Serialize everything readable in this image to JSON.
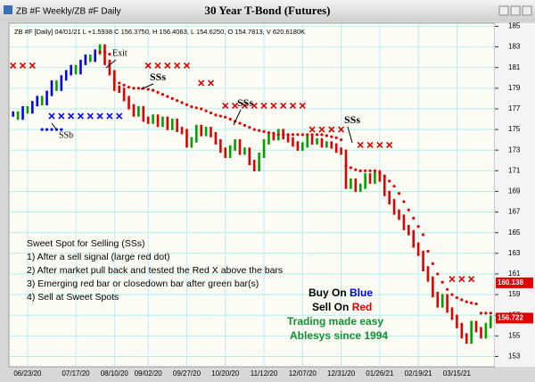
{
  "header": {
    "window_title": "ZB #F Weekly/ZB #F Daily",
    "chart_title": "30 Year T-Bond (Futures)"
  },
  "chart_data": {
    "type": "bar",
    "info": "ZB #F [Daily] 04/01/21 L +1.5938 C 156.3750, H 156.4063, L 154.6250, O 154.7813, V 620.6180K",
    "categories": [
      null,
      null,
      null,
      "06/23/20",
      null,
      null,
      null,
      null,
      null,
      null,
      null,
      null,
      null,
      "07/17/20",
      null,
      null,
      null,
      null,
      null,
      null,
      null,
      "08/10/20",
      null,
      null,
      null,
      null,
      null,
      null,
      "09/02/20",
      null,
      null,
      null,
      null,
      null,
      null,
      null,
      "09/27/20",
      null,
      null,
      null,
      null,
      null,
      null,
      null,
      "10/20/20",
      null,
      null,
      null,
      null,
      null,
      null,
      null,
      "11/12/20",
      null,
      null,
      null,
      null,
      null,
      null,
      null,
      "12/07/20",
      null,
      null,
      null,
      null,
      null,
      null,
      null,
      "12/31/20",
      null,
      null,
      null,
      null,
      null,
      null,
      null,
      "01/26/21",
      null,
      null,
      null,
      null,
      null,
      null,
      null,
      "02/19/21",
      null,
      null,
      null,
      null,
      null,
      null,
      null,
      "03/15/21",
      null,
      null,
      null,
      null,
      null,
      null,
      null
    ],
    "price": {
      "up_color": "#00a000",
      "down_color": "#e00000",
      "buy_color": "#0000ff",
      "values": [
        176.5,
        176.2,
        177.0,
        176.8,
        177.5,
        178.0,
        177.6,
        178.5,
        179.5,
        179.0,
        180.0,
        180.5,
        181.0,
        180.6,
        181.5,
        182.0,
        181.8,
        182.5,
        183.0,
        181.5,
        180.5,
        179.0,
        178.8,
        178.0,
        177.2,
        176.5,
        177.0,
        176.0,
        175.8,
        176.2,
        175.5,
        176.0,
        175.2,
        175.8,
        175.0,
        174.8,
        173.5,
        174.0,
        175.2,
        174.6,
        175.0,
        174.5,
        173.8,
        173.0,
        172.5,
        173.2,
        173.8,
        172.8,
        173.0,
        171.8,
        171.2,
        172.5,
        173.8,
        174.5,
        174.2,
        174.8,
        174.3,
        174.0,
        173.6,
        173.2,
        173.5,
        174.2,
        173.8,
        173.9,
        173.5,
        173.6,
        173.4,
        173.0,
        172.8,
        169.5,
        170.0,
        169.2,
        169.5,
        170.5,
        170.0,
        170.8,
        170.2,
        168.8,
        168.0,
        167.0,
        166.5,
        165.5,
        165.0,
        163.8,
        163.0,
        161.5,
        160.5,
        159.0,
        158.0,
        158.8,
        157.5,
        156.8,
        156.0,
        155.0,
        154.5,
        156.2,
        155.6,
        155.0,
        156.0,
        156.7
      ]
    },
    "markers": [
      {
        "shape": "dot",
        "color": "#e00000",
        "values": [
          null,
          null,
          null,
          null,
          null,
          null,
          null,
          null,
          null,
          null,
          null,
          null,
          null,
          null,
          null,
          null,
          null,
          null,
          182.5,
          182.5,
          182.3,
          179.8,
          179.5,
          179.3,
          179.1,
          179.0,
          179.0,
          179.0,
          178.9,
          178.8,
          178.6,
          178.4,
          178.2,
          178.0,
          177.8,
          177.6,
          177.4,
          177.2,
          177.1,
          177.0,
          176.8,
          176.6,
          176.4,
          176.3,
          176.2,
          176.0,
          175.8,
          175.6,
          175.4,
          175.2,
          175.0,
          174.9,
          174.8,
          174.7,
          174.6,
          174.5,
          174.5,
          174.5,
          174.5,
          174.5,
          174.5,
          174.5,
          174.5,
          174.5,
          174.5,
          174.4,
          174.3,
          174.2,
          174.0,
          171.5,
          171.3,
          171.1,
          171.0,
          171.0,
          171.0,
          171.0,
          170.8,
          170.5,
          170.0,
          169.5,
          168.8,
          168.0,
          167.2,
          166.4,
          165.6,
          164.8,
          163.2,
          162.0,
          161.0,
          160.2,
          159.5,
          159.0,
          158.7,
          158.5,
          158.3,
          158.2,
          158.1,
          157.2,
          157.2,
          157.2
        ]
      },
      {
        "shape": "x",
        "color": "#e00000",
        "values": [
          181.2,
          null,
          181.2,
          null,
          181.2,
          null,
          null,
          null,
          null,
          null,
          null,
          null,
          null,
          null,
          null,
          null,
          null,
          null,
          null,
          null,
          null,
          null,
          null,
          null,
          null,
          null,
          null,
          null,
          181.2,
          null,
          181.2,
          null,
          181.2,
          null,
          181.2,
          null,
          181.2,
          null,
          null,
          179.5,
          null,
          179.5,
          null,
          null,
          177.3,
          null,
          177.3,
          null,
          177.3,
          null,
          177.3,
          null,
          177.3,
          null,
          177.3,
          null,
          177.3,
          null,
          177.3,
          null,
          177.3,
          null,
          175.0,
          null,
          175.0,
          null,
          175.0,
          null,
          175.0,
          null,
          null,
          null,
          173.5,
          null,
          173.5,
          null,
          173.5,
          null,
          173.5,
          null,
          null,
          null,
          null,
          null,
          null,
          null,
          null,
          null,
          null,
          null,
          null,
          160.5,
          null,
          160.5,
          null,
          160.5,
          null,
          null,
          null,
          null
        ]
      },
      {
        "shape": "x",
        "color": "#0000ff",
        "values": [
          null,
          null,
          null,
          null,
          null,
          null,
          null,
          null,
          176.3,
          null,
          176.3,
          null,
          176.3,
          null,
          176.3,
          null,
          176.3,
          null,
          176.3,
          null,
          176.3,
          null,
          176.3,
          null,
          null,
          null,
          null,
          null,
          null,
          null,
          null,
          null,
          null,
          null,
          null,
          null,
          null,
          null,
          null,
          null,
          null,
          null,
          null,
          null,
          null,
          null,
          null,
          null,
          null,
          null,
          null,
          null,
          null,
          null,
          null,
          null,
          null,
          null,
          null,
          null,
          null,
          null,
          null,
          null,
          null,
          null,
          null,
          null,
          null,
          null,
          null,
          null,
          null,
          null,
          null,
          null,
          null,
          null,
          null,
          null,
          null,
          null,
          null,
          null,
          null,
          null,
          null,
          null,
          null,
          null,
          null,
          null,
          null,
          null,
          null,
          null,
          null,
          null,
          null,
          null
        ]
      },
      {
        "shape": "dot",
        "color": "#0000ff",
        "values": [
          null,
          null,
          null,
          null,
          null,
          null,
          175.0,
          175.0,
          175.0,
          175.0,
          175.0,
          null,
          null,
          null,
          null,
          null,
          null,
          null,
          null,
          null,
          null,
          null,
          null,
          null,
          null,
          null,
          null,
          null,
          null,
          null,
          null,
          null,
          null,
          null,
          null,
          null,
          null,
          null,
          null,
          null,
          null,
          null,
          null,
          null,
          null,
          null,
          null,
          null,
          null,
          null,
          null,
          null,
          null,
          null,
          null,
          null,
          null,
          null,
          null,
          null,
          null,
          null,
          null,
          null,
          null,
          null,
          null,
          null,
          null,
          null,
          null,
          null,
          null,
          null,
          null,
          null,
          null,
          null,
          null,
          null,
          null,
          null,
          null,
          null,
          null,
          null,
          null,
          null,
          null,
          null,
          null,
          null,
          null,
          null,
          null,
          null,
          null,
          null,
          null,
          null
        ]
      }
    ],
    "ylim": [
      152,
      185.3
    ],
    "yticks": [
      153,
      155,
      157,
      159,
      161,
      163,
      165,
      167,
      169,
      171,
      173,
      175,
      177,
      179,
      181,
      183,
      185
    ],
    "grid": true,
    "price_tags": [
      160.138,
      156.722
    ],
    "annotations": [
      "Exit",
      "SSs",
      "SSs",
      "SSs",
      "SSb"
    ],
    "notes": [
      "Sweet Spot for Selling (SSs)",
      "1) After a sell signal (large red dot)",
      "2) After market pull back and tested the Red X above the bars",
      "3) Emerging red bar or closedown bar after green bar(s)",
      "4) Sell at Sweet Spots"
    ],
    "slogan": {
      "buy": "Buy On ",
      "buy_word": "Blue",
      "sell": "Sell On ",
      "sell_word": "Red",
      "line1": "Trading made easy",
      "line2": "Ablesys since 1994"
    }
  }
}
